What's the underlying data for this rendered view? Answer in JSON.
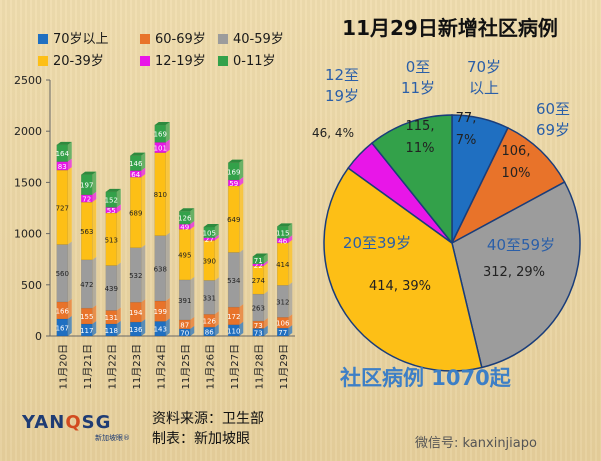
{
  "title": "11月29日新增社区病例",
  "total_label": "社区病例 1070起",
  "source": "资料来源：卫生部",
  "made_by": "制表：新加坡眼",
  "logo": {
    "left": "YAN",
    "q": "Q",
    "right": "SG",
    "sub": "新加坡眼®"
  },
  "watermark": "微信号: kanxinjiapo",
  "legend": [
    {
      "label": "70岁以上",
      "color": "#1f6fc1"
    },
    {
      "label": "60-69岁",
      "color": "#e8732a"
    },
    {
      "label": "40-59岁",
      "color": "#9c9c9c"
    },
    {
      "label": "20-39岁",
      "color": "#fdbf16"
    },
    {
      "label": "12-19岁",
      "color": "#e816e8"
    },
    {
      "label": "0-11岁",
      "color": "#33a14a"
    }
  ],
  "chart_data": [
    {
      "type": "bar",
      "stacked": true,
      "categories": [
        "11月20日",
        "11月21日",
        "11月22日",
        "11月23日",
        "11月24日",
        "11月25日",
        "11月26日",
        "11月27日",
        "11月28日",
        "11月29日"
      ],
      "yticks": [
        "0",
        "500",
        "1000",
        "1500",
        "2000",
        "2500"
      ],
      "ylim": [
        0,
        2500
      ],
      "series": [
        {
          "name": "70岁以上",
          "color": "#1f6fc1",
          "values": [
            167,
            117,
            118,
            136,
            143,
            70,
            86,
            110,
            73,
            77
          ]
        },
        {
          "name": "60-69岁",
          "color": "#e8732a",
          "values": [
            166,
            155,
            131,
            194,
            199,
            87,
            126,
            172,
            73,
            106
          ]
        },
        {
          "name": "40-59岁",
          "color": "#9c9c9c",
          "values": [
            560,
            472,
            439,
            532,
            638,
            391,
            331,
            534,
            263,
            312
          ]
        },
        {
          "name": "20-39岁",
          "color": "#fdbf16",
          "values": [
            727,
            563,
            513,
            689,
            810,
            495,
            390,
            649,
            274,
            414
          ]
        },
        {
          "name": "12-19岁",
          "color": "#e816e8",
          "values": [
            83,
            72,
            55,
            64,
            101,
            49,
            27,
            59,
            22,
            46
          ]
        },
        {
          "name": "0-11岁",
          "color": "#33a14a",
          "values": [
            164,
            197,
            152,
            146,
            169,
            126,
            105,
            169,
            71,
            115
          ]
        }
      ]
    },
    {
      "type": "pie",
      "categories": [
        "70岁以上",
        "60至69岁",
        "40至59岁",
        "20至39岁",
        "12至19岁",
        "0至11岁"
      ],
      "values": [
        77,
        106,
        312,
        414,
        46,
        115
      ],
      "percent": [
        "7%",
        "10%",
        "29%",
        "39%",
        "4%",
        "11%"
      ],
      "colors": [
        "#1f6fc1",
        "#e8732a",
        "#9c9c9c",
        "#fdbf16",
        "#e816e8",
        "#33a14a"
      ],
      "labels": [
        {
          "name": "70岁\n以上",
          "value": "77,\n7%"
        },
        {
          "name": "60至\n69岁",
          "value": "106,\n10%"
        },
        {
          "name": "40至59岁",
          "value": "312, 29%"
        },
        {
          "name": "20至39岁",
          "value": "414, 39%"
        },
        {
          "name": "",
          "value": "46, 4%"
        },
        {
          "name": "0至\n11岁",
          "value": "115,\n11%"
        }
      ],
      "extra_outer_labels": [
        {
          "name": "12至\n19岁"
        }
      ]
    }
  ]
}
